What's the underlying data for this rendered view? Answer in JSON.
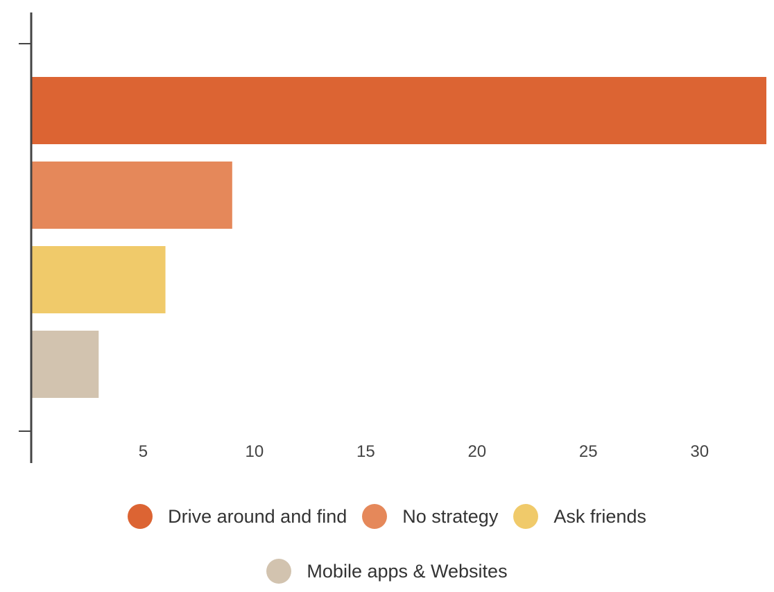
{
  "chart_data": {
    "type": "bar",
    "orientation": "horizontal",
    "categories": [
      "Drive around and find",
      "No strategy",
      "Ask friends",
      "Mobile apps & Websites"
    ],
    "values": [
      33,
      9,
      6,
      3
    ],
    "colors": [
      "#DC6433",
      "#E5885A",
      "#F0CA6A",
      "#D2C3AF"
    ],
    "x_ticks": [
      "5",
      "10",
      "15",
      "20",
      "25",
      "30"
    ],
    "xlim": [
      0,
      33
    ],
    "grid": false,
    "legend_position": "bottom",
    "title": "",
    "xlabel": "",
    "ylabel": ""
  },
  "legend": [
    {
      "label": "Drive around and find",
      "color": "#DC6433"
    },
    {
      "label": "No strategy",
      "color": "#E5885A"
    },
    {
      "label": "Ask friends",
      "color": "#F0CA6A"
    },
    {
      "label": "Mobile apps & Websites",
      "color": "#D2C3AF"
    }
  ]
}
